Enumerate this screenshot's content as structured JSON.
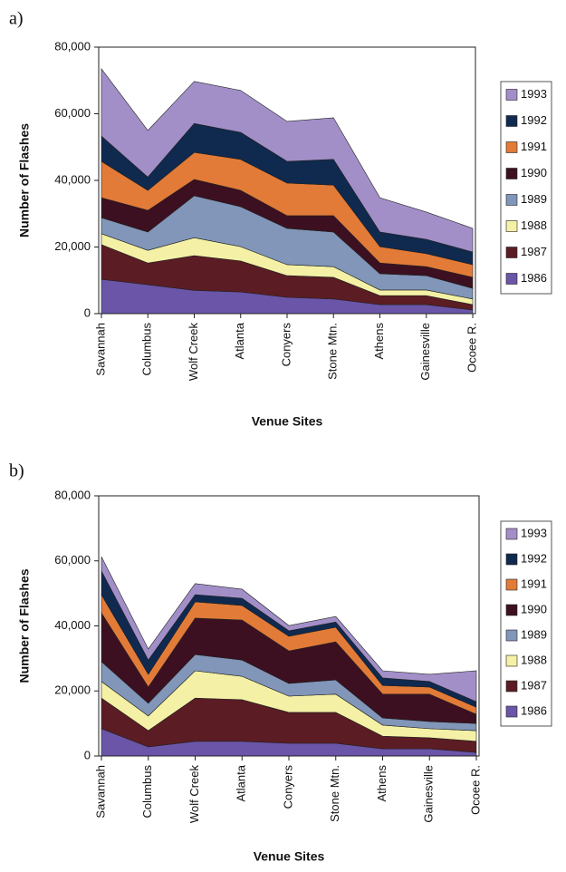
{
  "chart_data": [
    {
      "type": "area",
      "stacked": true,
      "panel_label": "a)",
      "x_label": "Venue Sites",
      "y_label": "Number of Flashes",
      "categories": [
        "Savannah",
        "Columbus",
        "Wolf Creek",
        "Atlanta",
        "Conyers",
        "Stone Mtn.",
        "Athens",
        "Gainesville",
        "Ocoee R."
      ],
      "ylim": [
        0,
        80000
      ],
      "yticks": [
        0,
        {
          "value": 20000,
          "label": "20,000"
        },
        {
          "value": 40000,
          "label": "40,000"
        },
        {
          "value": 60000,
          "label": "60,000"
        },
        {
          "value": 80000,
          "label": "80,000"
        }
      ],
      "legend_position": "right",
      "series": [
        {
          "name": "1986",
          "color": "#6a55a8",
          "values": [
            10300,
            8700,
            7000,
            6500,
            4900,
            4400,
            2700,
            2700,
            1100
          ]
        },
        {
          "name": "1987",
          "color": "#5c1c24",
          "values": [
            10400,
            6500,
            10400,
            9300,
            6500,
            6500,
            2700,
            2700,
            1600
          ]
        },
        {
          "name": "1988",
          "color": "#f4f1a6",
          "values": [
            3300,
            3800,
            5400,
            4300,
            3300,
            3200,
            1700,
            1700,
            1700
          ]
        },
        {
          "name": "1989",
          "color": "#8196b8",
          "values": [
            4800,
            5500,
            12600,
            12000,
            10900,
            10400,
            4900,
            4300,
            3200
          ]
        },
        {
          "name": "1990",
          "color": "#3c1020",
          "values": [
            6000,
            6500,
            4900,
            4900,
            3800,
            4900,
            3200,
            2700,
            3300
          ]
        },
        {
          "name": "1991",
          "color": "#e27b38",
          "values": [
            10900,
            6000,
            8100,
            9300,
            9800,
            9200,
            4900,
            3900,
            3800
          ]
        },
        {
          "name": "1992",
          "color": "#10294f",
          "values": [
            7600,
            4000,
            8700,
            8100,
            6500,
            7700,
            4400,
            4300,
            3800
          ]
        },
        {
          "name": "1993",
          "color": "#a28fc8",
          "values": [
            20200,
            14000,
            12600,
            12600,
            12000,
            12500,
            10300,
            8200,
            7100
          ]
        }
      ]
    },
    {
      "type": "area",
      "stacked": true,
      "panel_label": "b)",
      "x_label": "Venue Sites",
      "y_label": "Number of Flashes",
      "categories": [
        "Savannah",
        "Columbus",
        "Wolf Creek",
        "Atlanta",
        "Conyers",
        "Stone Mtn.",
        "Athens",
        "Gainesville",
        "Ocoee R."
      ],
      "ylim": [
        0,
        80000
      ],
      "yticks": [
        0,
        {
          "value": 20000,
          "label": "20,000"
        },
        {
          "value": 40000,
          "label": "40,000"
        },
        {
          "value": 60000,
          "label": "60,000"
        },
        {
          "value": 80000,
          "label": "80,000"
        }
      ],
      "legend_position": "right",
      "series": [
        {
          "name": "1986",
          "color": "#6a55a8",
          "values": [
            8400,
            2800,
            4500,
            4500,
            3900,
            3900,
            2200,
            2200,
            1100
          ]
        },
        {
          "name": "1987",
          "color": "#5c1c24",
          "values": [
            9400,
            5000,
            13300,
            12800,
            9500,
            9500,
            3900,
            3400,
            3400
          ]
        },
        {
          "name": "1988",
          "color": "#f4f1a6",
          "values": [
            5100,
            4500,
            8400,
            7200,
            5000,
            5600,
            3400,
            2800,
            3300
          ]
        },
        {
          "name": "1989",
          "color": "#8196b8",
          "values": [
            6100,
            3900,
            5000,
            5000,
            3900,
            4400,
            2200,
            2200,
            2200
          ]
        },
        {
          "name": "1990",
          "color": "#3c1020",
          "values": [
            15000,
            5000,
            11200,
            12300,
            10000,
            11700,
            7300,
            8400,
            2800
          ]
        },
        {
          "name": "1991",
          "color": "#e27b38",
          "values": [
            5600,
            3900,
            5000,
            4500,
            4500,
            4500,
            2700,
            2200,
            2200
          ]
        },
        {
          "name": "1992",
          "color": "#10294f",
          "values": [
            7300,
            4400,
            2200,
            2200,
            1700,
            1600,
            2300,
            1700,
            1700
          ]
        },
        {
          "name": "1993",
          "color": "#a28fc8",
          "values": [
            4400,
            3400,
            3400,
            2800,
            1600,
            1700,
            2200,
            2200,
            9500
          ]
        }
      ]
    }
  ]
}
